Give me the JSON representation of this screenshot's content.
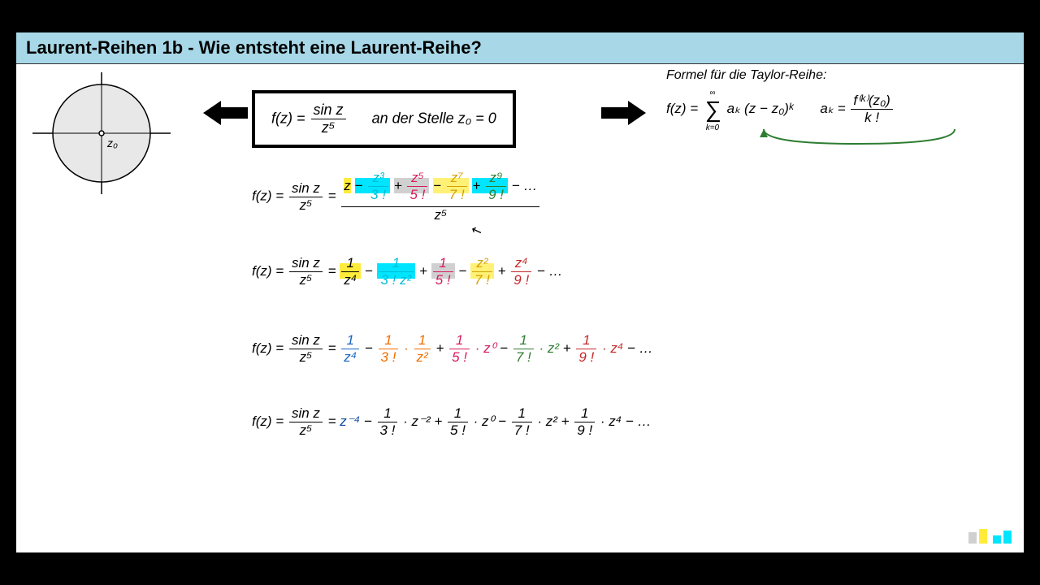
{
  "title": "Laurent-Reihen 1b - Wie entsteht eine Laurent-Reihe?",
  "diagram": {
    "label": "z₀"
  },
  "formula_box": {
    "func": "f(z) =",
    "frac_num": "sin z",
    "frac_den": "z⁵",
    "location": "an der Stelle z₀ = 0"
  },
  "taylor": {
    "label": "Formel für die Taylor-Reihe:",
    "lhs": "f(z) =",
    "sum_top": "∞",
    "sum_bot": "k=0",
    "term": "aₖ (z − z₀)ᵏ",
    "ak_lhs": "aₖ =",
    "ak_num": "f⁽ᵏ⁾(z₀)",
    "ak_den": "k !"
  },
  "expansions": {
    "lhs": "f(z) =",
    "sinz": "sin z",
    "z5": "z⁵",
    "line1_terms": [
      {
        "txt": "z",
        "hl": "hl-yellow",
        "num": "",
        "den": ""
      },
      {
        "op": "−",
        "num": "z³",
        "den": "3 !",
        "hl": "hl-cyan",
        "c": "c-cyan"
      },
      {
        "op": "+",
        "num": "z⁵",
        "den": "5 !",
        "hl": "hl-gray",
        "c": "c-magenta"
      },
      {
        "op": "−",
        "num": "z⁷",
        "den": "7 !",
        "hl": "hl-lyellow",
        "c": "c-yellow"
      },
      {
        "op": "+",
        "num": "z⁹",
        "den": "9 !",
        "hl": "hl-cyan",
        "c": "c-green"
      }
    ],
    "line1_tail": "− …",
    "line2_terms": [
      {
        "num": "1",
        "den": "z⁴",
        "hl": "hl-yellow",
        "c": ""
      },
      {
        "op": "−",
        "num": "1",
        "den": "3 ! z²",
        "hl": "hl-cyan",
        "c": "c-cyan"
      },
      {
        "op": "+",
        "num": "1",
        "den": "5 !",
        "hl": "hl-gray",
        "c": "c-magenta"
      },
      {
        "op": "−",
        "num": "z²",
        "den": "7 !",
        "hl": "hl-lyellow",
        "c": "c-yellow"
      },
      {
        "op": "+",
        "num": "z⁴",
        "den": "9 !",
        "hl": "",
        "c": "c-red"
      }
    ],
    "line2_tail": "− …",
    "line3_terms": [
      {
        "num": "1",
        "den": "z⁴",
        "c": "c-blue"
      },
      {
        "op": "−",
        "num": "1",
        "den": "3 !",
        "suf": "·",
        "sufnum": "1",
        "sufden": "z²",
        "c": "c-orange"
      },
      {
        "op": "+",
        "num": "1",
        "den": "5 !",
        "suf": "· z⁰",
        "c": "c-magenta"
      },
      {
        "op": "−",
        "num": "1",
        "den": "7 !",
        "suf": "· z²",
        "c": "c-green"
      },
      {
        "op": "+",
        "num": "1",
        "den": "9 !",
        "suf": "· z⁴",
        "c": "c-red"
      }
    ],
    "line3_tail": "− …",
    "line4_terms": [
      {
        "txt": "z⁻⁴",
        "c": "c-dblue"
      },
      {
        "op": "−",
        "num": "1",
        "den": "3 !",
        "suf": "· z⁻²",
        "c": ""
      },
      {
        "op": "+",
        "num": "1",
        "den": "5 !",
        "suf": "· z⁰",
        "c": ""
      },
      {
        "op": "−",
        "num": "1",
        "den": "7 !",
        "suf": "· z²",
        "c": ""
      },
      {
        "op": "+",
        "num": "1",
        "den": "9 !",
        "suf": "· z⁴",
        "c": ""
      }
    ],
    "line4_tail": "− …"
  },
  "colors": {
    "title_bg": "#a8d8e8",
    "hl_yellow": "#ffeb3b",
    "hl_cyan": "#00e5ff",
    "hl_gray": "#d0d0d0",
    "logo1": "#d0d0d0",
    "logo2": "#ffeb3b",
    "logo3": "#00e5ff",
    "logo4": "#00e5ff"
  }
}
